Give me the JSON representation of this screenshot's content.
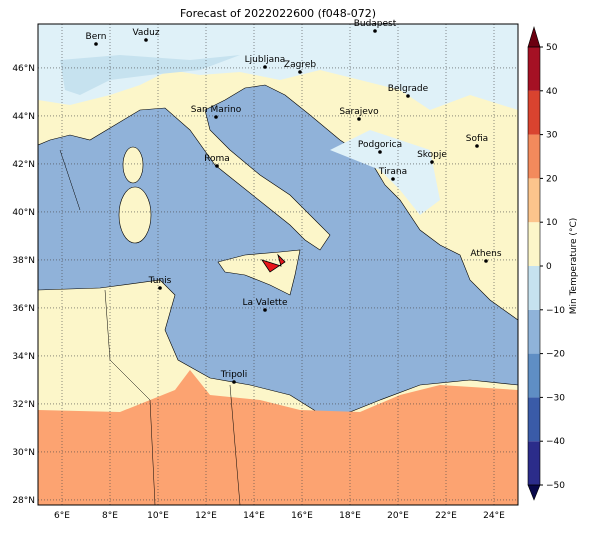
{
  "title": "Forecast of 2022022600 (f048-072)",
  "map": {
    "lon_range": [
      5,
      25
    ],
    "lat_range": [
      27.79,
      47.83
    ],
    "lon_ticks": [
      {
        "value": 6,
        "label": "6°E"
      },
      {
        "value": 8,
        "label": "8°E"
      },
      {
        "value": 10,
        "label": "10°E"
      },
      {
        "value": 12,
        "label": "12°E"
      },
      {
        "value": 14,
        "label": "14°E"
      },
      {
        "value": 16,
        "label": "16°E"
      },
      {
        "value": 18,
        "label": "18°E"
      },
      {
        "value": 20,
        "label": "20°E"
      },
      {
        "value": 22,
        "label": "22°E"
      },
      {
        "value": 24,
        "label": "24°E"
      }
    ],
    "lat_ticks": [
      {
        "value": 28,
        "label": "28°N"
      },
      {
        "value": 30,
        "label": "30°N"
      },
      {
        "value": 32,
        "label": "32°N"
      },
      {
        "value": 34,
        "label": "34°N"
      },
      {
        "value": 36,
        "label": "36°N"
      },
      {
        "value": 38,
        "label": "38°N"
      },
      {
        "value": 40,
        "label": "40°N"
      },
      {
        "value": 42,
        "label": "42°N"
      },
      {
        "value": 44,
        "label": "44°N"
      },
      {
        "value": 46,
        "label": "46°N"
      }
    ],
    "grid": true,
    "cities": [
      "Bern",
      "Vaduz",
      "Budapest",
      "Ljubljana",
      "Zagreb",
      "Belgrade",
      "Sarajevo",
      "San Marino",
      "Roma",
      "Podgorica",
      "Skopje",
      "Sofia",
      "Tirana",
      "Athens",
      "Tunis",
      "La Valette",
      "Tripoli"
    ]
  },
  "colorbar": {
    "label": "Min Temperature (°C)",
    "lim": [
      -50,
      50
    ],
    "ticks": [
      {
        "value": -50,
        "label": "−50"
      },
      {
        "value": -40,
        "label": "−40"
      },
      {
        "value": -30,
        "label": "−30"
      },
      {
        "value": -20,
        "label": "−20"
      },
      {
        "value": -10,
        "label": "−10"
      },
      0,
      10,
      20,
      30,
      40,
      50
    ],
    "colors": [
      "#2b2c8a",
      "#3a5ba8",
      "#5f8ec4",
      "#8fb3d9",
      "#c6e2ef",
      "#fcf6c9",
      "#fcc48c",
      "#f38a5c",
      "#d9432f",
      "#a51124"
    ],
    "under_color": "#08084a",
    "over_color": "#6b0010"
  }
}
